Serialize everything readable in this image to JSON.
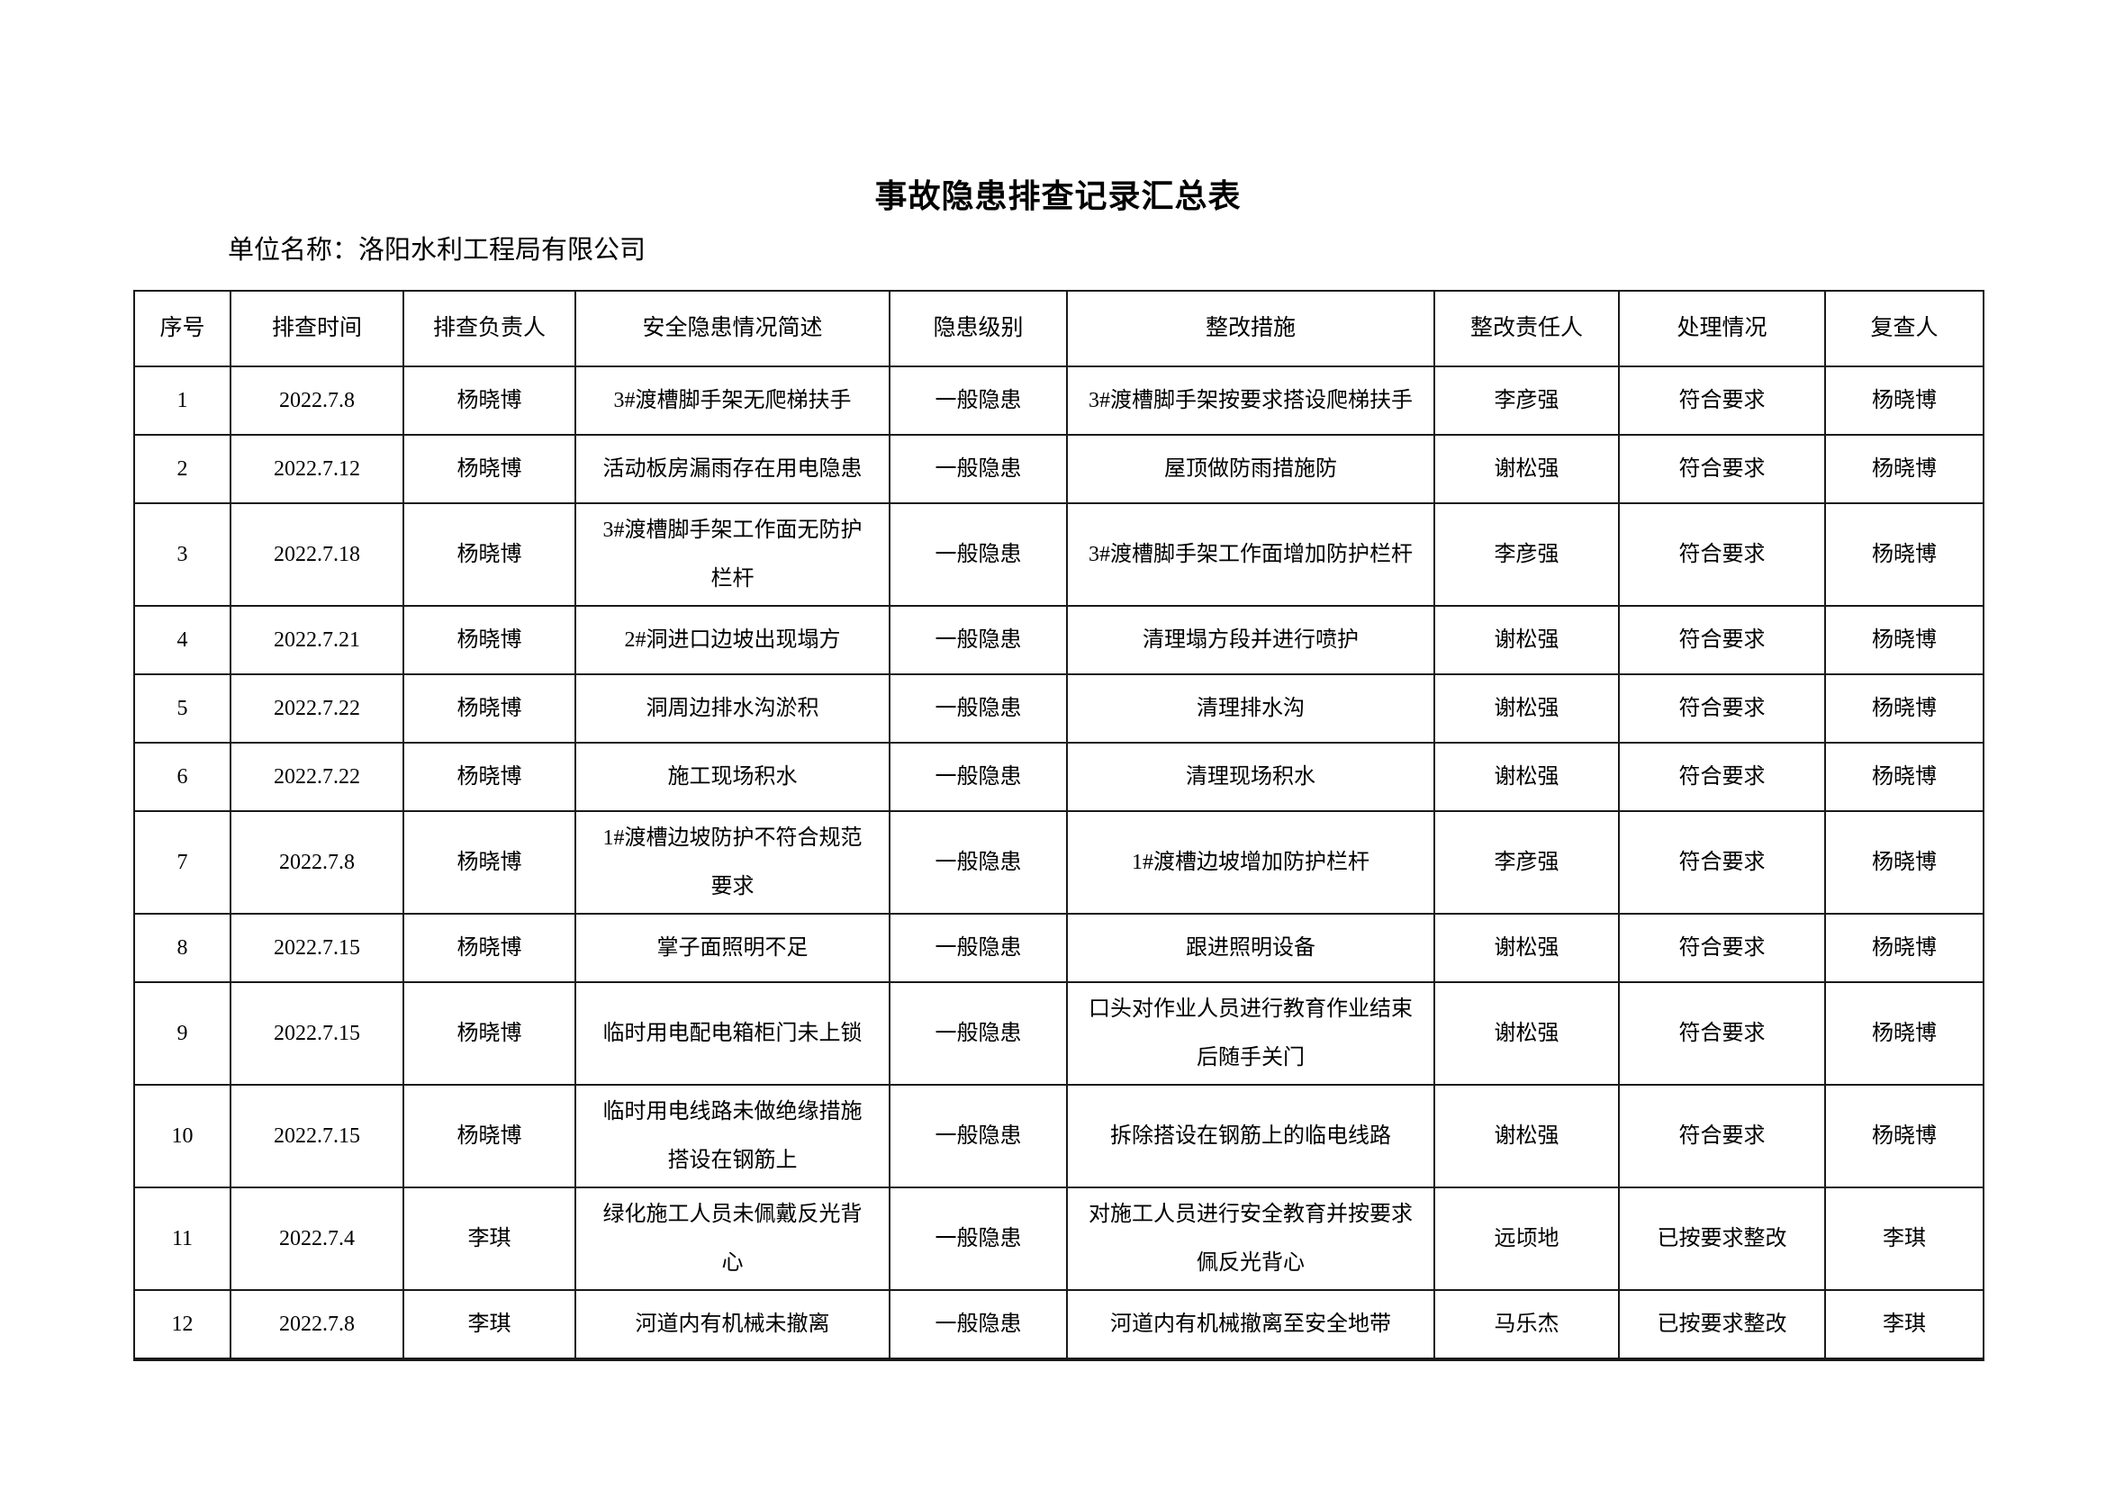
{
  "page": {
    "title": "事故隐患排查记录汇总表",
    "unit_label": "单位名称：洛阳水利工程局有限公司"
  },
  "table": {
    "headers": [
      "序号",
      "排查时间",
      "排查负责人",
      "安全隐患情况简述",
      "隐患级别",
      "整改措施",
      "整改责任人",
      "处理情况",
      "复查人"
    ],
    "rows": [
      [
        "1",
        "2022.7.8",
        "杨晓博",
        "3#渡槽脚手架无爬梯扶手",
        "一般隐患",
        "3#渡槽脚手架按要求搭设爬梯扶手",
        "李彦强",
        "符合要求",
        "杨晓博"
      ],
      [
        "2",
        "2022.7.12",
        "杨晓博",
        "活动板房漏雨存在用电隐患",
        "一般隐患",
        "屋顶做防雨措施防",
        "谢松强",
        "符合要求",
        "杨晓博"
      ],
      [
        "3",
        "2022.7.18",
        "杨晓博",
        "3#渡槽脚手架工作面无防护\n栏杆",
        "一般隐患",
        "3#渡槽脚手架工作面增加防护栏杆",
        "李彦强",
        "符合要求",
        "杨晓博"
      ],
      [
        "4",
        "2022.7.21",
        "杨晓博",
        "2#洞进口边坡出现塌方",
        "一般隐患",
        "清理塌方段并进行喷护",
        "谢松强",
        "符合要求",
        "杨晓博"
      ],
      [
        "5",
        "2022.7.22",
        "杨晓博",
        "洞周边排水沟淤积",
        "一般隐患",
        "清理排水沟",
        "谢松强",
        "符合要求",
        "杨晓博"
      ],
      [
        "6",
        "2022.7.22",
        "杨晓博",
        "施工现场积水",
        "一般隐患",
        "清理现场积水",
        "谢松强",
        "符合要求",
        "杨晓博"
      ],
      [
        "7",
        "2022.7.8",
        "杨晓博",
        "1#渡槽边坡防护不符合规范\n要求",
        "一般隐患",
        "1#渡槽边坡增加防护栏杆",
        "李彦强",
        "符合要求",
        "杨晓博"
      ],
      [
        "8",
        "2022.7.15",
        "杨晓博",
        "掌子面照明不足",
        "一般隐患",
        "跟进照明设备",
        "谢松强",
        "符合要求",
        "杨晓博"
      ],
      [
        "9",
        "2022.7.15",
        "杨晓博",
        "临时用电配电箱柜门未上锁",
        "一般隐患",
        "口头对作业人员进行教育作业结束\n后随手关门",
        "谢松强",
        "符合要求",
        "杨晓博"
      ],
      [
        "10",
        "2022.7.15",
        "杨晓博",
        "临时用电线路未做绝缘措施\n搭设在钢筋上",
        "一般隐患",
        "拆除搭设在钢筋上的临电线路",
        "谢松强",
        "符合要求",
        "杨晓博"
      ],
      [
        "11",
        "2022.7.4",
        "李琪",
        "绿化施工人员未佩戴反光背\n心",
        "一般隐患",
        "对施工人员进行安全教育并按要求\n佩反光背心",
        "远顷地",
        "已按要求整改",
        "李琪"
      ],
      [
        "12",
        "2022.7.8",
        "李琪",
        "河道内有机械未撤离",
        "一般隐患",
        "河道内有机械撤离至安全地带",
        "马乐杰",
        "已按要求整改",
        "李琪"
      ]
    ]
  }
}
